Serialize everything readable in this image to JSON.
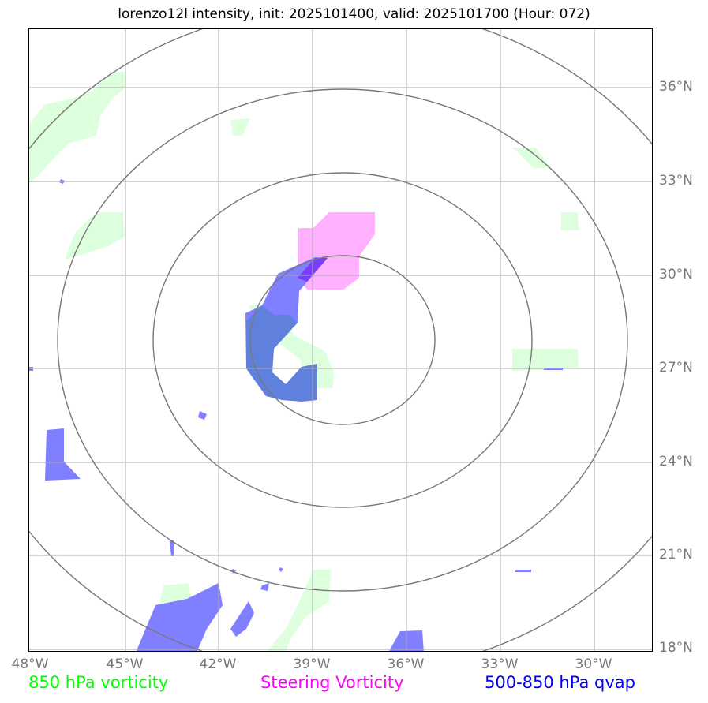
{
  "title": "lorenzo12l intensity, init: 2025101400, valid: 2025101700 (Hour: 072)",
  "lat_labels": [
    "36°N",
    "33°N",
    "30°N",
    "27°N",
    "24°N",
    "21°N",
    "18°N"
  ],
  "lon_labels": [
    "48°W",
    "45°W",
    "42°W",
    "39°W",
    "36°W",
    "33°W",
    "30°W"
  ],
  "legend": {
    "vorticity_850": "850 hPa vorticity",
    "steering": "Steering Vorticity",
    "qvap": "500-850 hPa qvap"
  },
  "colors": {
    "vorticity_850": "#00ff00",
    "steering": "#ff00ff",
    "qvap": "#0000ff",
    "vort_fill": "#ddffdd",
    "steer_fill": "#ffb0ff",
    "qvap_fill": "#7f7fff",
    "overlap_fill": "#5f80dd",
    "grid": "#aaaaaa",
    "rings": "#777777"
  }
}
